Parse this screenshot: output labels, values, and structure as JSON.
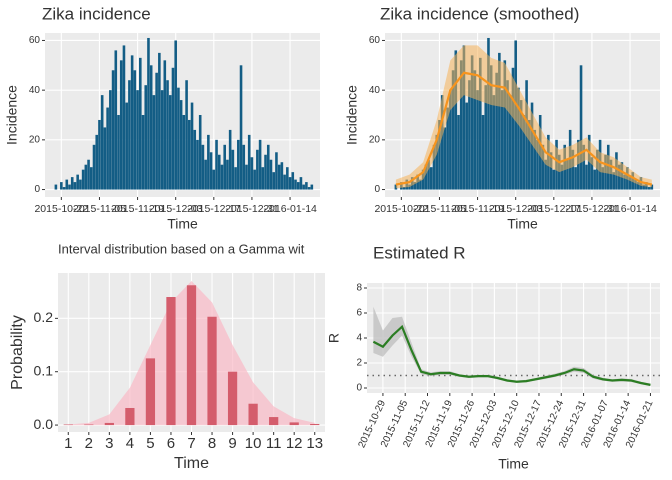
{
  "chart_data": [
    {
      "type": "bar",
      "title": "Zika incidence",
      "x_label": "Time",
      "y_label": "Incidence",
      "color": "#135d85",
      "x": [
        "2015-10-20",
        "2015-10-21",
        "2015-10-22",
        "2015-10-23",
        "2015-10-24",
        "2015-10-25",
        "2015-10-26",
        "2015-10-27",
        "2015-10-28",
        "2015-10-29",
        "2015-10-30",
        "2015-10-31",
        "2015-11-01",
        "2015-11-02",
        "2015-11-03",
        "2015-11-04",
        "2015-11-05",
        "2015-11-06",
        "2015-11-07",
        "2015-11-08",
        "2015-11-09",
        "2015-11-10",
        "2015-11-11",
        "2015-11-12",
        "2015-11-13",
        "2015-11-14",
        "2015-11-15",
        "2015-11-16",
        "2015-11-17",
        "2015-11-18",
        "2015-11-19",
        "2015-11-20",
        "2015-11-21",
        "2015-11-22",
        "2015-11-23",
        "2015-11-24",
        "2015-11-25",
        "2015-11-26",
        "2015-11-27",
        "2015-11-28",
        "2015-11-29",
        "2015-11-30",
        "2015-12-01",
        "2015-12-02",
        "2015-12-03",
        "2015-12-04",
        "2015-12-05",
        "2015-12-06",
        "2015-12-07",
        "2015-12-08",
        "2015-12-09",
        "2015-12-10",
        "2015-12-11",
        "2015-12-12",
        "2015-12-13",
        "2015-12-14",
        "2015-12-15",
        "2015-12-16",
        "2015-12-17",
        "2015-12-18",
        "2015-12-19",
        "2015-12-20",
        "2015-12-21",
        "2015-12-22",
        "2015-12-23",
        "2015-12-24",
        "2015-12-25",
        "2015-12-26",
        "2015-12-27",
        "2015-12-28",
        "2015-12-29",
        "2015-12-30",
        "2015-12-31",
        "2016-01-01",
        "2016-01-02",
        "2016-01-03",
        "2016-01-04",
        "2016-01-05",
        "2016-01-06",
        "2016-01-07",
        "2016-01-08",
        "2016-01-09",
        "2016-01-10",
        "2016-01-11",
        "2016-01-12",
        "2016-01-13",
        "2016-01-14",
        "2016-01-15",
        "2016-01-16",
        "2016-01-17",
        "2016-01-18",
        "2016-01-19",
        "2016-01-20",
        "2016-01-21",
        "2016-01-22"
      ],
      "values": [
        2,
        0,
        3,
        1,
        4,
        2,
        5,
        3,
        6,
        4,
        8,
        10,
        12,
        9,
        18,
        22,
        28,
        38,
        25,
        33,
        40,
        48,
        56,
        30,
        52,
        58,
        35,
        44,
        54,
        48,
        40,
        53,
        30,
        42,
        61,
        50,
        38,
        47,
        55,
        40,
        52,
        44,
        38,
        49,
        60,
        41,
        36,
        30,
        44,
        28,
        35,
        24,
        20,
        30,
        18,
        12,
        22,
        15,
        8,
        20,
        14,
        10,
        18,
        12,
        24,
        16,
        9,
        20,
        50,
        18,
        10,
        22,
        13,
        8,
        16,
        20,
        9,
        14,
        18,
        12,
        7,
        15,
        10,
        11,
        6,
        9,
        5,
        7,
        4,
        3,
        5,
        2,
        3,
        1,
        2
      ],
      "xlim": [
        "2015-10-16",
        "2016-01-25"
      ],
      "xticks": [
        "2015-10-22",
        "2015-11-05",
        "2015-11-19",
        "2015-12-03",
        "2015-12-17",
        "2015-12-31",
        "2016-01-14"
      ],
      "ylim": [
        -3,
        63
      ],
      "yticks": [
        0,
        20,
        40,
        60
      ],
      "grid": true
    },
    {
      "type": "bar",
      "title": "Zika incidence (smoothed)",
      "x_label": "Time",
      "y_label": "Incidence",
      "color": "#135d85",
      "x": [
        "2015-10-20",
        "2015-10-21",
        "2015-10-22",
        "2015-10-23",
        "2015-10-24",
        "2015-10-25",
        "2015-10-26",
        "2015-10-27",
        "2015-10-28",
        "2015-10-29",
        "2015-10-30",
        "2015-10-31",
        "2015-11-01",
        "2015-11-02",
        "2015-11-03",
        "2015-11-04",
        "2015-11-05",
        "2015-11-06",
        "2015-11-07",
        "2015-11-08",
        "2015-11-09",
        "2015-11-10",
        "2015-11-11",
        "2015-11-12",
        "2015-11-13",
        "2015-11-14",
        "2015-11-15",
        "2015-11-16",
        "2015-11-17",
        "2015-11-18",
        "2015-11-19",
        "2015-11-20",
        "2015-11-21",
        "2015-11-22",
        "2015-11-23",
        "2015-11-24",
        "2015-11-25",
        "2015-11-26",
        "2015-11-27",
        "2015-11-28",
        "2015-11-29",
        "2015-11-30",
        "2015-12-01",
        "2015-12-02",
        "2015-12-03",
        "2015-12-04",
        "2015-12-05",
        "2015-12-06",
        "2015-12-07",
        "2015-12-08",
        "2015-12-09",
        "2015-12-10",
        "2015-12-11",
        "2015-12-12",
        "2015-12-13",
        "2015-12-14",
        "2015-12-15",
        "2015-12-16",
        "2015-12-17",
        "2015-12-18",
        "2015-12-19",
        "2015-12-20",
        "2015-12-21",
        "2015-12-22",
        "2015-12-23",
        "2015-12-24",
        "2015-12-25",
        "2015-12-26",
        "2015-12-27",
        "2015-12-28",
        "2015-12-29",
        "2015-12-30",
        "2015-12-31",
        "2016-01-01",
        "2016-01-02",
        "2016-01-03",
        "2016-01-04",
        "2016-01-05",
        "2016-01-06",
        "2016-01-07",
        "2016-01-08",
        "2016-01-09",
        "2016-01-10",
        "2016-01-11",
        "2016-01-12",
        "2016-01-13",
        "2016-01-14",
        "2016-01-15",
        "2016-01-16",
        "2016-01-17",
        "2016-01-18",
        "2016-01-19",
        "2016-01-20",
        "2016-01-21",
        "2016-01-22"
      ],
      "values": [
        2,
        0,
        3,
        1,
        4,
        2,
        5,
        3,
        6,
        4,
        8,
        10,
        12,
        9,
        18,
        22,
        28,
        38,
        25,
        33,
        40,
        48,
        56,
        30,
        52,
        58,
        35,
        44,
        54,
        48,
        40,
        53,
        30,
        42,
        61,
        50,
        38,
        47,
        55,
        40,
        52,
        44,
        38,
        49,
        60,
        41,
        36,
        30,
        44,
        28,
        35,
        24,
        20,
        30,
        18,
        12,
        22,
        15,
        8,
        20,
        14,
        10,
        18,
        12,
        24,
        16,
        9,
        20,
        50,
        18,
        10,
        22,
        13,
        8,
        16,
        20,
        9,
        14,
        18,
        12,
        7,
        15,
        10,
        11,
        6,
        9,
        5,
        7,
        4,
        3,
        5,
        2,
        3,
        1,
        2
      ],
      "smooth": {
        "color": "#f7941d",
        "band_color": "#f5b35a",
        "x": [
          "2015-10-20",
          "2015-10-25",
          "2015-10-30",
          "2015-11-04",
          "2015-11-09",
          "2015-11-14",
          "2015-11-19",
          "2015-11-24",
          "2015-11-29",
          "2015-12-04",
          "2015-12-09",
          "2015-12-14",
          "2015-12-19",
          "2015-12-24",
          "2015-12-29",
          "2016-01-03",
          "2016-01-08",
          "2016-01-13",
          "2016-01-18",
          "2016-01-22"
        ],
        "values": [
          2,
          3,
          7,
          20,
          40,
          47,
          46,
          42,
          41,
          33,
          24,
          15,
          11,
          13,
          16,
          11,
          9,
          6,
          3,
          2
        ],
        "lower": [
          0.5,
          1,
          4,
          14,
          32,
          38,
          36,
          34,
          33,
          26,
          18,
          10,
          7,
          9,
          12,
          7,
          6,
          4,
          1.5,
          1
        ],
        "upper": [
          4,
          6,
          11,
          28,
          52,
          58,
          58,
          53,
          51,
          41,
          31,
          21,
          16,
          18,
          21,
          15,
          13,
          9,
          5,
          4
        ]
      },
      "xlim": [
        "2015-10-16",
        "2016-01-25"
      ],
      "xticks": [
        "2015-10-22",
        "2015-11-05",
        "2015-11-19",
        "2015-12-03",
        "2015-12-17",
        "2015-12-31",
        "2016-01-14"
      ],
      "ylim": [
        -3,
        63
      ],
      "yticks": [
        0,
        20,
        40,
        60
      ],
      "grid": true
    },
    {
      "type": "bar",
      "title": "Interval distribution based on a Gamma wit",
      "x_label": "Time",
      "y_label": "Probability",
      "color": "#d45d6c",
      "categories": [
        "1",
        "2",
        "3",
        "4",
        "5",
        "6",
        "7",
        "8",
        "9",
        "10",
        "11",
        "12",
        "13"
      ],
      "values": [
        0.001,
        0.001,
        0.004,
        0.032,
        0.125,
        0.24,
        0.262,
        0.203,
        0.1,
        0.04,
        0.015,
        0.005,
        0.002
      ],
      "density": [
        0.001,
        0.004,
        0.02,
        0.07,
        0.15,
        0.23,
        0.27,
        0.23,
        0.15,
        0.08,
        0.035,
        0.013,
        0.004
      ],
      "density_color": "#f9b9c6",
      "ylim": [
        -0.013,
        0.285
      ],
      "yticks": [
        {
          "value": 0,
          "label": "0.0"
        },
        0.1,
        0.2
      ],
      "grid": true
    },
    {
      "type": "line",
      "title": "Estimated R",
      "x_label": "Time",
      "y_label": "R",
      "color": "#2b7d23",
      "band_color": "#bdbdbd",
      "x": [
        "2015-10-26",
        "2015-10-29",
        "2015-11-01",
        "2015-11-04",
        "2015-11-07",
        "2015-11-10",
        "2015-11-13",
        "2015-11-16",
        "2015-11-19",
        "2015-11-22",
        "2015-11-25",
        "2015-11-28",
        "2015-12-01",
        "2015-12-04",
        "2015-12-07",
        "2015-12-10",
        "2015-12-13",
        "2015-12-16",
        "2015-12-19",
        "2015-12-22",
        "2015-12-25",
        "2015-12-28",
        "2015-12-31",
        "2016-01-03",
        "2016-01-06",
        "2016-01-09",
        "2016-01-12",
        "2016-01-15",
        "2016-01-18",
        "2016-01-21"
      ],
      "values": [
        3.7,
        3.3,
        4.2,
        4.9,
        3.0,
        1.3,
        1.1,
        1.2,
        1.2,
        1.0,
        0.9,
        0.95,
        0.95,
        0.8,
        0.6,
        0.5,
        0.55,
        0.7,
        0.85,
        1.0,
        1.2,
        1.5,
        1.4,
        0.9,
        0.7,
        0.6,
        0.65,
        0.6,
        0.4,
        0.25
      ],
      "lower": [
        2.8,
        2.5,
        3.4,
        4.2,
        2.5,
        1.1,
        0.95,
        1.05,
        1.05,
        0.9,
        0.8,
        0.85,
        0.85,
        0.7,
        0.5,
        0.42,
        0.45,
        0.6,
        0.72,
        0.88,
        1.05,
        1.3,
        1.2,
        0.75,
        0.58,
        0.5,
        0.52,
        0.48,
        0.3,
        0.15
      ],
      "upper": [
        6.5,
        4.6,
        5.6,
        5.7,
        3.6,
        1.5,
        1.25,
        1.35,
        1.35,
        1.1,
        1.0,
        1.05,
        1.05,
        0.9,
        0.7,
        0.6,
        0.65,
        0.8,
        0.98,
        1.15,
        1.35,
        1.7,
        1.6,
        1.05,
        0.82,
        0.7,
        0.78,
        0.72,
        0.5,
        0.35
      ],
      "reference_line": 1,
      "xlim": [
        "2015-10-24",
        "2016-01-24"
      ],
      "xticks": [
        "2015-10-29",
        "2015-11-05",
        "2015-11-12",
        "2015-11-19",
        "2015-11-26",
        "2015-12-03",
        "2015-12-10",
        "2015-12-17",
        "2015-12-24",
        "2015-12-31",
        "2016-01-07",
        "2016-01-14",
        "2016-01-21"
      ],
      "ylim": [
        -0.4,
        8.4
      ],
      "yticks": [
        0,
        2,
        4,
        6,
        8
      ],
      "grid": true
    }
  ]
}
